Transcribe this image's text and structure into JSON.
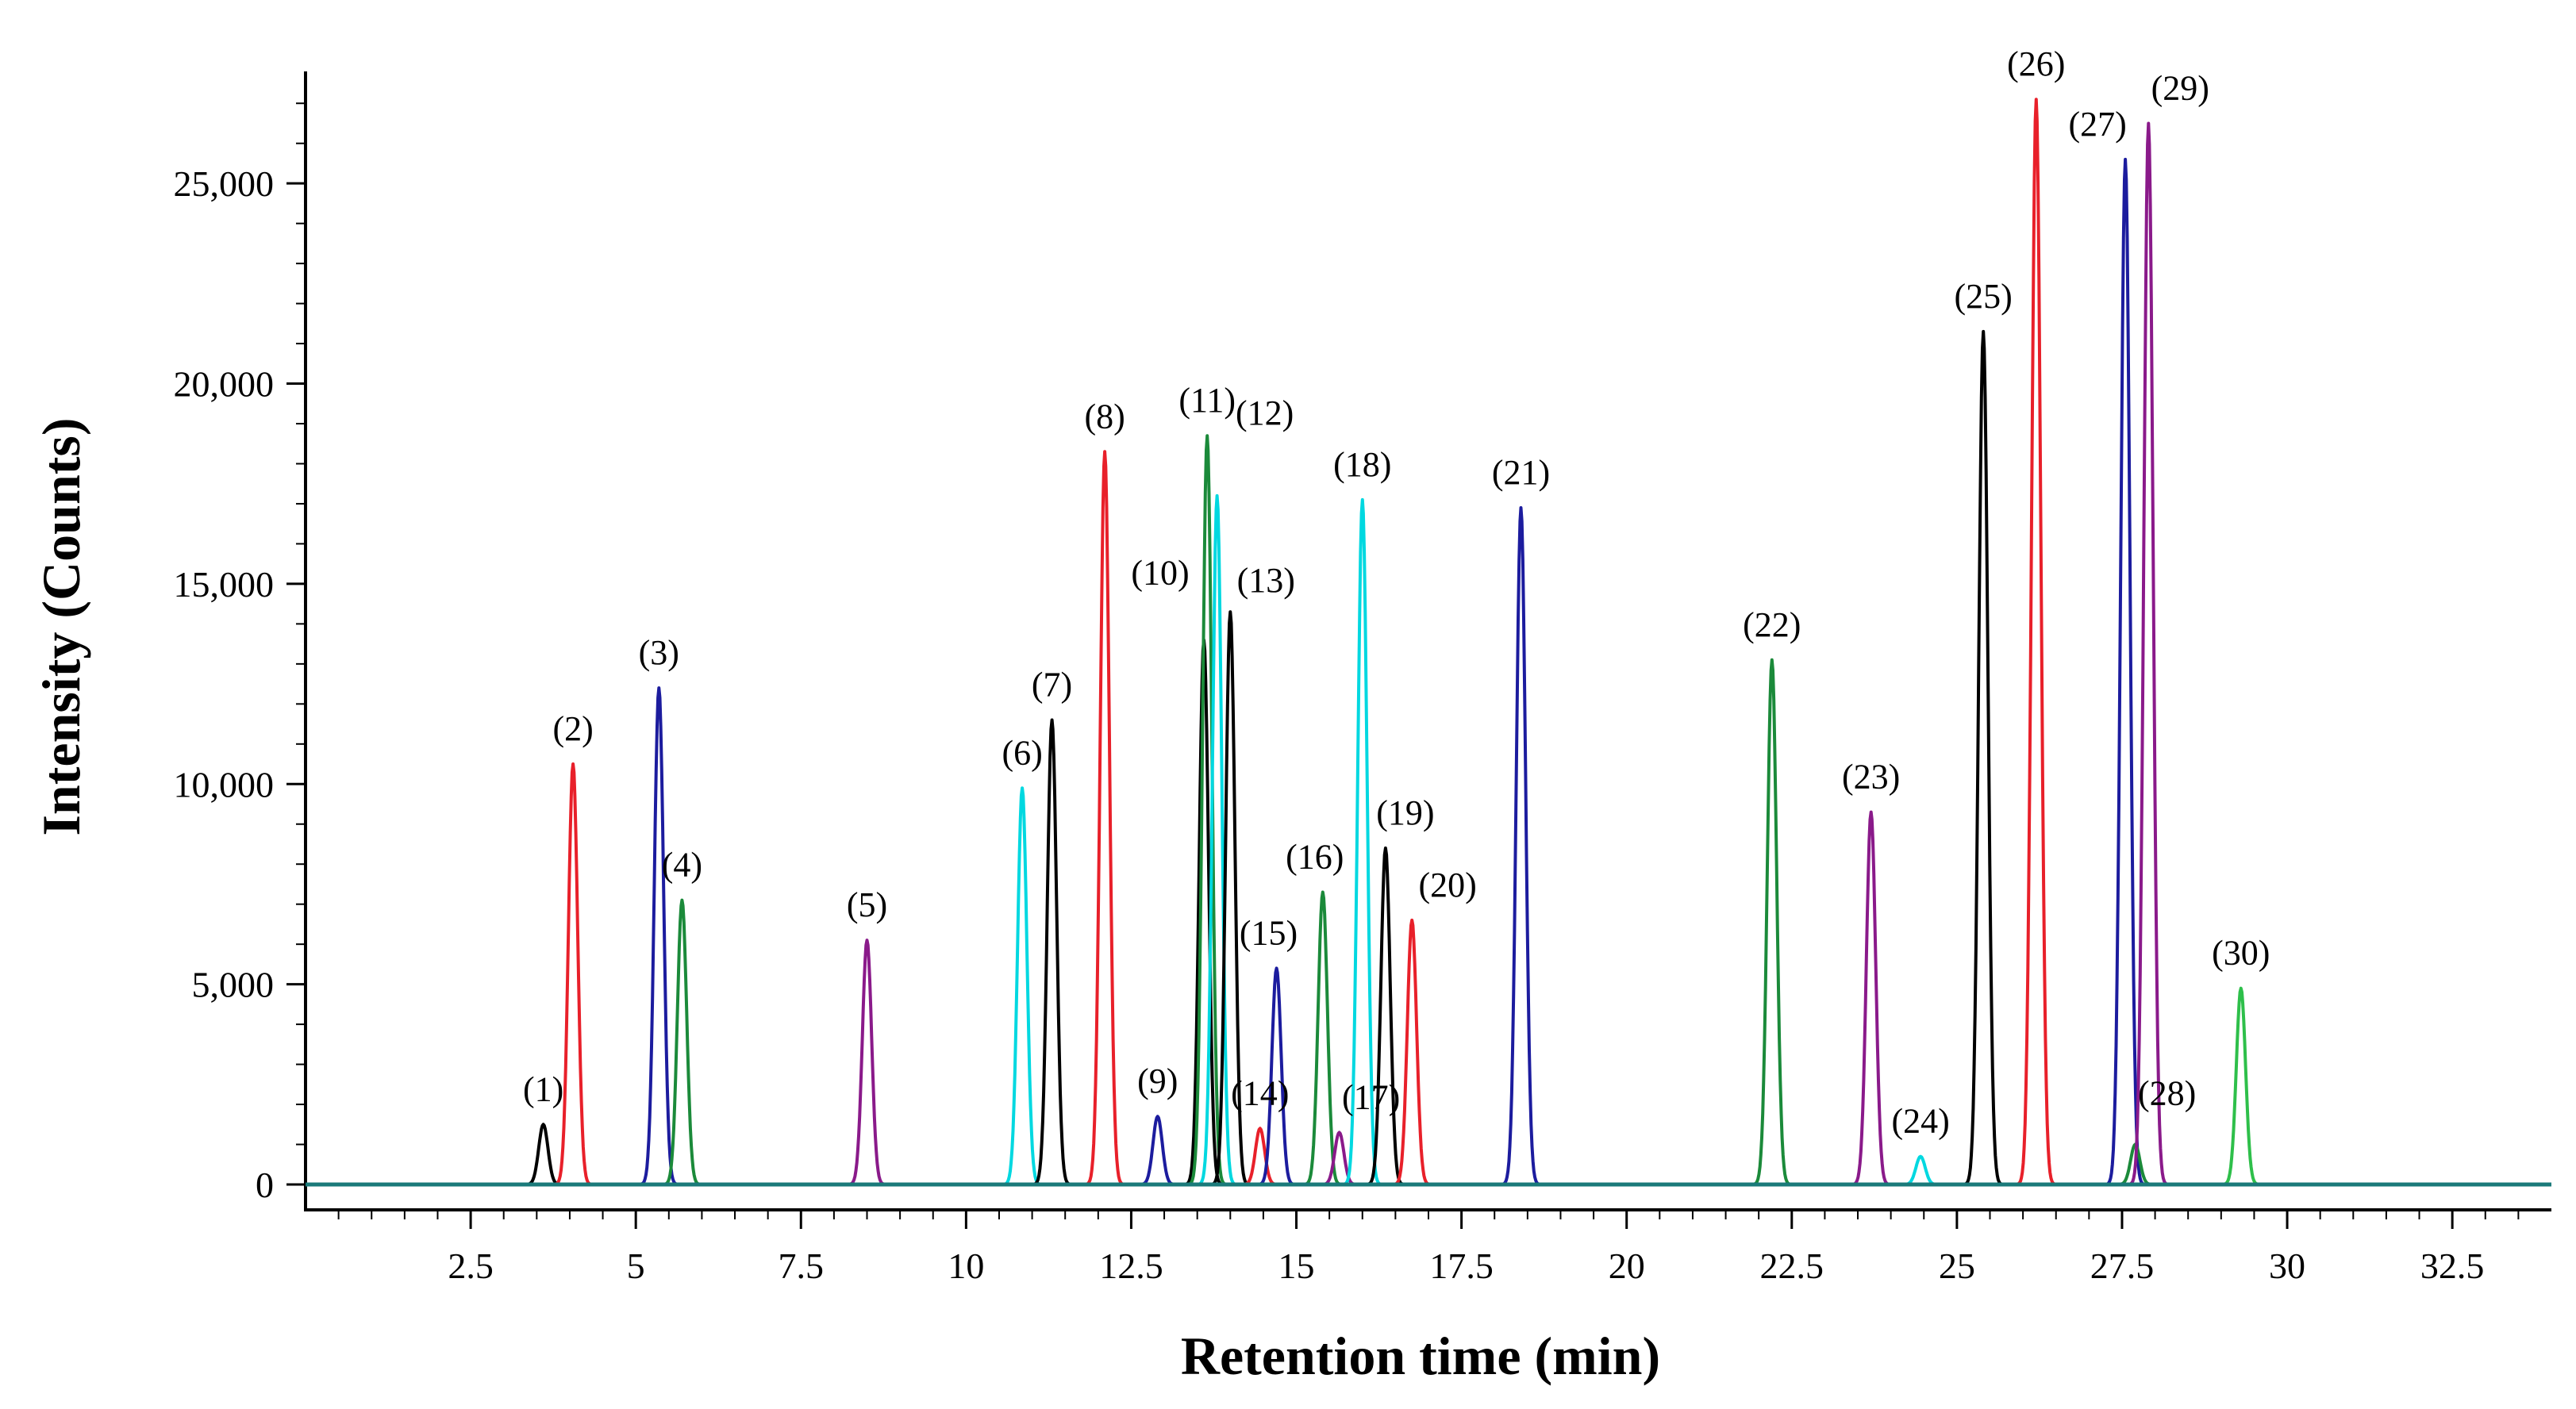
{
  "chart_data": {
    "type": "line",
    "title": "",
    "xlabel": "Retention time (min)",
    "ylabel": "Intensity (Counts)",
    "xlim": [
      0,
      34
    ],
    "ylim": [
      0,
      27500
    ],
    "x_ticks": [
      2.5,
      5,
      7.5,
      10,
      12.5,
      15,
      17.5,
      20,
      22.5,
      25,
      27.5,
      30,
      32.5
    ],
    "x_tick_labels": [
      "2.5",
      "5",
      "7.5",
      "10",
      "12.5",
      "15",
      "17.5",
      "20",
      "22.5",
      "25",
      "27.5",
      "30",
      "32.5"
    ],
    "y_ticks": [
      0,
      5000,
      10000,
      15000,
      20000,
      25000
    ],
    "y_tick_labels": [
      "0",
      "5,000",
      "10,000",
      "15,000",
      "20,000",
      "25,000"
    ],
    "grid": false,
    "legend": "none",
    "baseline_color": "#1a7a7a",
    "series": [
      {
        "label": "(1)",
        "rt": 3.6,
        "intensity": 1500,
        "color": "#000000"
      },
      {
        "label": "(2)",
        "rt": 4.05,
        "intensity": 10500,
        "color": "#e8202a"
      },
      {
        "label": "(3)",
        "rt": 5.35,
        "intensity": 12400,
        "color": "#1c1c9e"
      },
      {
        "label": "(4)",
        "rt": 5.7,
        "intensity": 7100,
        "color": "#1b8a3a"
      },
      {
        "label": "(5)",
        "rt": 8.5,
        "intensity": 6100,
        "color": "#8a1a8a"
      },
      {
        "label": "(6)",
        "rt": 10.85,
        "intensity": 9900,
        "color": "#00d8e0"
      },
      {
        "label": "(7)",
        "rt": 11.3,
        "intensity": 11600,
        "color": "#000000"
      },
      {
        "label": "(8)",
        "rt": 12.1,
        "intensity": 18300,
        "color": "#e8202a"
      },
      {
        "label": "(9)",
        "rt": 12.9,
        "intensity": 1700,
        "color": "#1c1c9e"
      },
      {
        "label": "(10)",
        "rt": 13.6,
        "intensity": 13600,
        "color": "#000000"
      },
      {
        "label": "(11)",
        "rt": 13.65,
        "intensity": 18700,
        "color": "#1b8a3a"
      },
      {
        "label": "(12)",
        "rt": 13.8,
        "intensity": 17200,
        "color": "#00d8e0"
      },
      {
        "label": "(13)",
        "rt": 14.0,
        "intensity": 14300,
        "color": "#000000"
      },
      {
        "label": "(14)",
        "rt": 14.45,
        "intensity": 1400,
        "color": "#e8202a"
      },
      {
        "label": "(15)",
        "rt": 14.7,
        "intensity": 5400,
        "color": "#1c1c9e"
      },
      {
        "label": "(16)",
        "rt": 15.4,
        "intensity": 7300,
        "color": "#1b8a3a"
      },
      {
        "label": "(17)",
        "rt": 15.65,
        "intensity": 1300,
        "color": "#8a1a8a"
      },
      {
        "label": "(18)",
        "rt": 16.0,
        "intensity": 17100,
        "color": "#00d8e0"
      },
      {
        "label": "(19)",
        "rt": 16.35,
        "intensity": 8400,
        "color": "#000000"
      },
      {
        "label": "(20)",
        "rt": 16.75,
        "intensity": 6600,
        "color": "#e8202a"
      },
      {
        "label": "(21)",
        "rt": 18.4,
        "intensity": 16900,
        "color": "#1c1c9e"
      },
      {
        "label": "(22)",
        "rt": 22.2,
        "intensity": 13100,
        "color": "#1b8a3a"
      },
      {
        "label": "(23)",
        "rt": 23.7,
        "intensity": 9300,
        "color": "#8a1a8a"
      },
      {
        "label": "(24)",
        "rt": 24.45,
        "intensity": 700,
        "color": "#00d8e0"
      },
      {
        "label": "(25)",
        "rt": 25.4,
        "intensity": 21300,
        "color": "#000000"
      },
      {
        "label": "(26)",
        "rt": 26.2,
        "intensity": 27100,
        "color": "#e8202a"
      },
      {
        "label": "(27)",
        "rt": 27.55,
        "intensity": 25600,
        "color": "#1c1c9e"
      },
      {
        "label": "(28)",
        "rt": 27.7,
        "intensity": 1000,
        "color": "#1b8a3a"
      },
      {
        "label": "(29)",
        "rt": 27.9,
        "intensity": 26500,
        "color": "#8a1a8a"
      },
      {
        "label": "(30)",
        "rt": 29.3,
        "intensity": 4900,
        "color": "#2ebf4a"
      }
    ]
  }
}
